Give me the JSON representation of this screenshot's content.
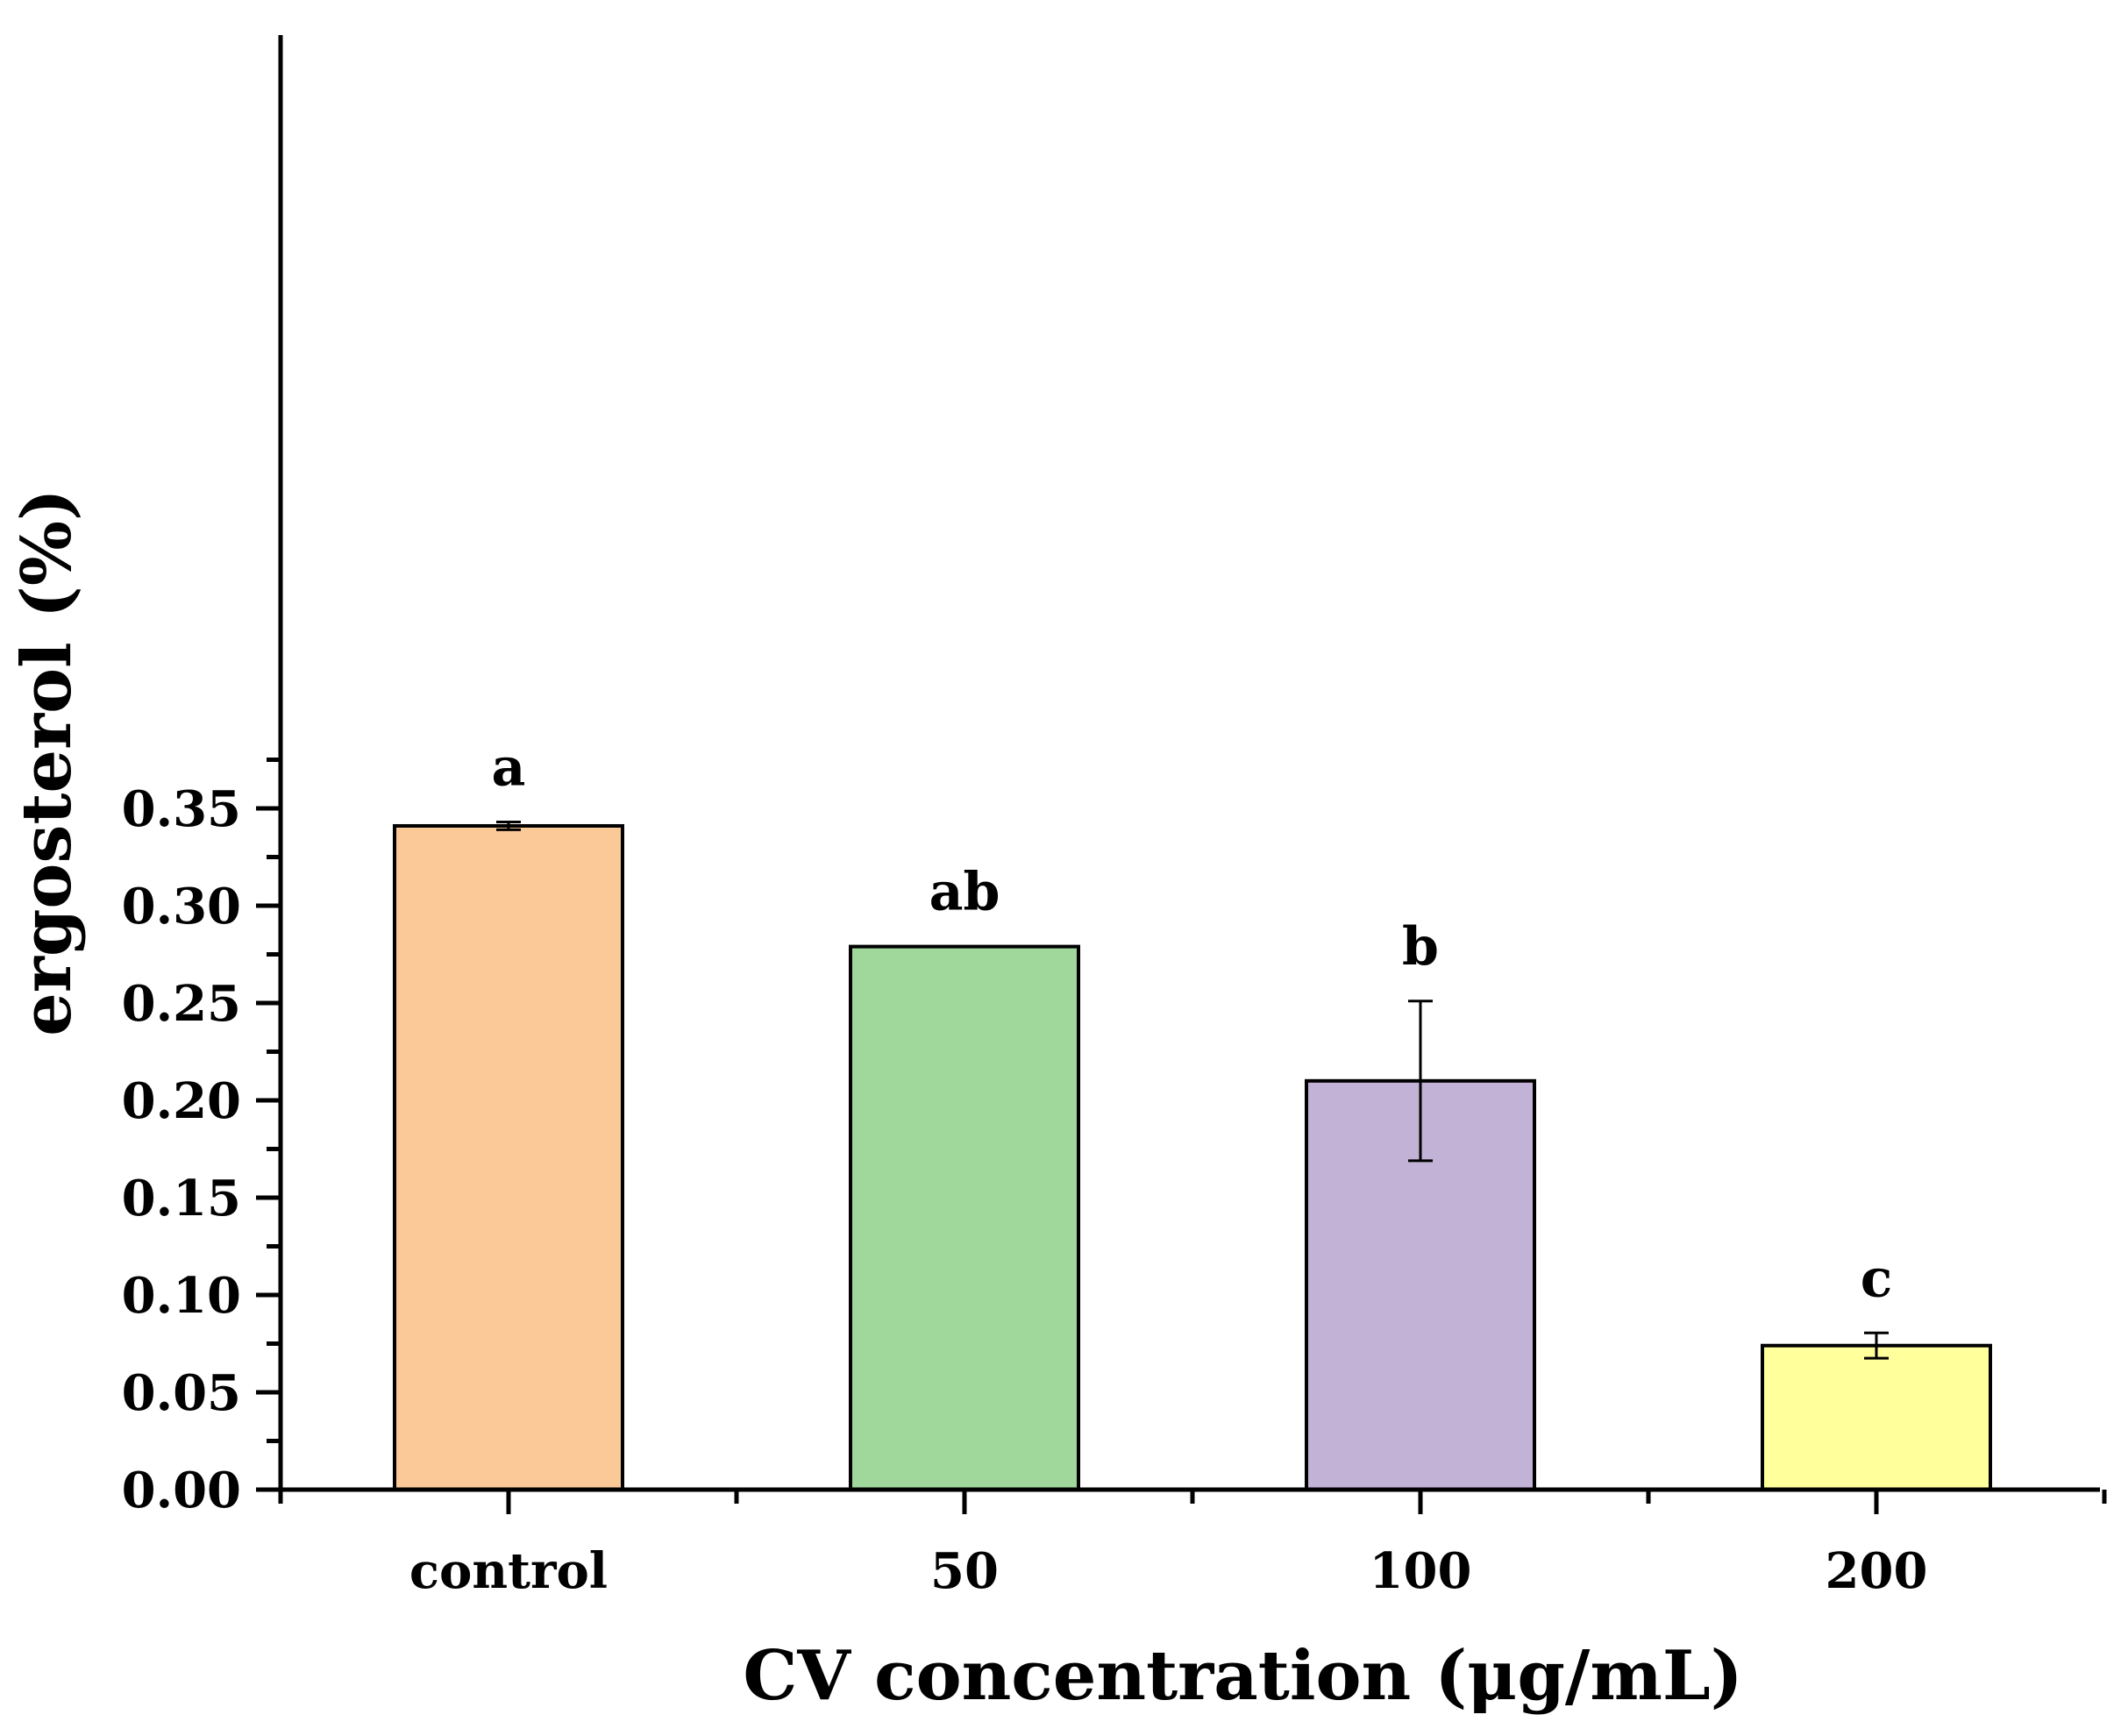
{
  "chart_data": {
    "type": "bar",
    "title": "",
    "xlabel": "CV concentration (μg/mL)",
    "ylabel": "ergosterol (%)",
    "categories": [
      "control",
      "50",
      "100",
      "200"
    ],
    "values": [
      0.341,
      0.279,
      0.21,
      0.074
    ],
    "errors": [
      0.002,
      0.0,
      0.041,
      0.0065
    ],
    "significance_letters": [
      "a",
      "ab",
      "b",
      "c"
    ],
    "colors": [
      "#FBC898",
      "#A0D89C",
      "#C2B2D6",
      "#FFFF9C"
    ],
    "ylim": [
      0,
      0.35
    ],
    "yticks": [
      "0.00",
      "0.05",
      "0.10",
      "0.15",
      "0.20",
      "0.25",
      "0.30",
      "0.35"
    ],
    "ytick_values": [
      0,
      0.05,
      0.1,
      0.15,
      0.2,
      0.25,
      0.3,
      0.35
    ],
    "grid": false,
    "legend": "none"
  }
}
